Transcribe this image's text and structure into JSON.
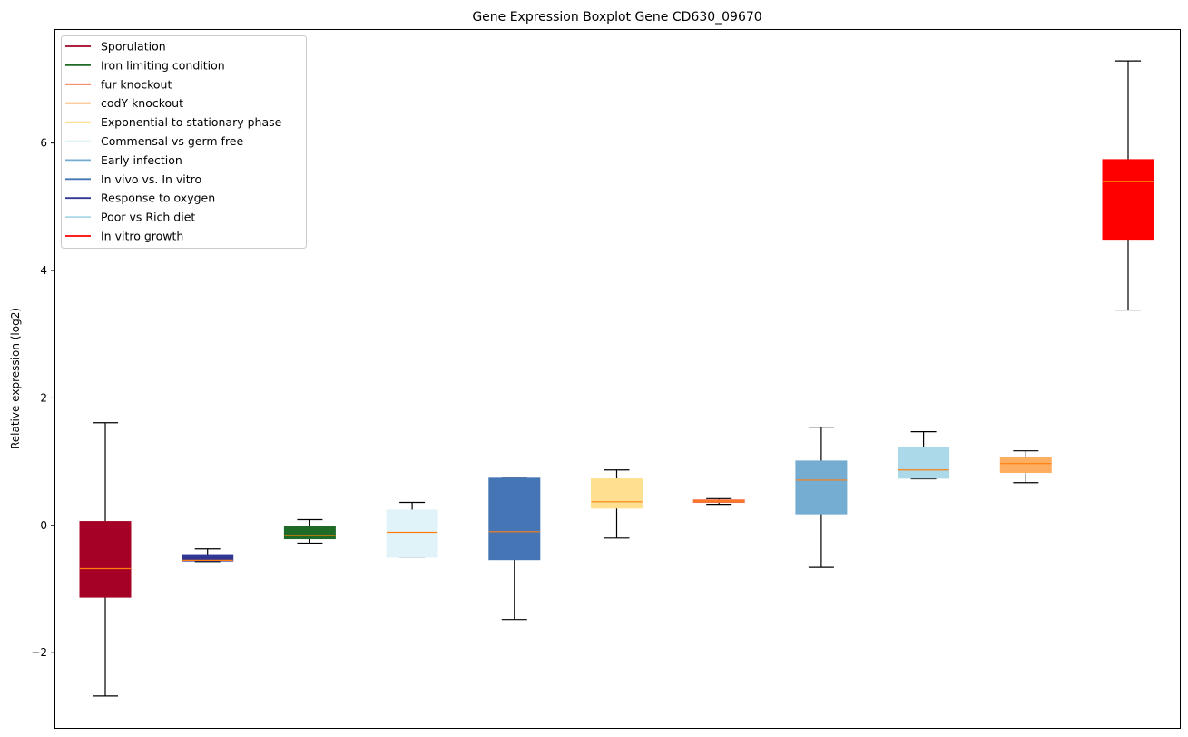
{
  "chart_data": {
    "type": "boxplot",
    "title": "Gene Expression Boxplot Gene CD630_09670",
    "xlabel": "",
    "ylabel": "Relative expression (log2)",
    "ylim": [
      -3.18,
      7.79
    ],
    "yticks": [
      -2,
      0,
      2,
      4,
      6
    ],
    "ytick_labels": [
      "−2",
      "0",
      "2",
      "4",
      "6"
    ],
    "grid": false,
    "legend_position": "top-left",
    "median_color": "#ff7f0e",
    "legend": [
      {
        "label": "Sporulation",
        "color": "#a50026"
      },
      {
        "label": "Iron limiting condition",
        "color": "#1d6b27"
      },
      {
        "label": "fur knockout",
        "color": "#f46d43"
      },
      {
        "label": "codY knockout",
        "color": "#fdae61"
      },
      {
        "label": "Exponential to stationary phase",
        "color": "#fee090"
      },
      {
        "label": "Commensal vs germ free",
        "color": "#e0f3f8"
      },
      {
        "label": "Early infection",
        "color": "#74add1"
      },
      {
        "label": "In vivo vs. In vitro",
        "color": "#4575b4"
      },
      {
        "label": "Response to oxygen",
        "color": "#313695"
      },
      {
        "label": "Poor vs Rich diet",
        "color": "#abd9e9"
      },
      {
        "label": "In vitro growth",
        "color": "#ff0000"
      }
    ],
    "boxes": [
      {
        "name": "Sporulation",
        "color": "#a50026",
        "whislo": -2.68,
        "q1": -1.13,
        "med": -0.68,
        "q3": 0.06,
        "whishi": 1.61
      },
      {
        "name": "Response to oxygen",
        "color": "#313695",
        "whislo": -0.57,
        "q1": -0.56,
        "med": -0.55,
        "q3": -0.46,
        "whishi": -0.37
      },
      {
        "name": "Iron limiting condition",
        "color": "#1d6b27",
        "whislo": -0.28,
        "q1": -0.21,
        "med": -0.16,
        "q3": -0.01,
        "whishi": 0.09
      },
      {
        "name": "Commensal vs germ free",
        "color": "#e0f3f8",
        "whislo": -0.5,
        "q1": -0.5,
        "med": -0.11,
        "q3": 0.24,
        "whishi": 0.36
      },
      {
        "name": "In vivo vs. In vitro",
        "color": "#4575b4",
        "whislo": -1.48,
        "q1": -0.54,
        "med": -0.1,
        "q3": 0.74,
        "whishi": 0.74
      },
      {
        "name": "Exponential to stationary phase",
        "color": "#fee090",
        "whislo": -0.2,
        "q1": 0.27,
        "med": 0.37,
        "q3": 0.73,
        "whishi": 0.87
      },
      {
        "name": "fur knockout",
        "color": "#f46d43",
        "whislo": 0.33,
        "q1": 0.36,
        "med": 0.38,
        "q3": 0.4,
        "whishi": 0.42
      },
      {
        "name": "Early infection",
        "color": "#74add1",
        "whislo": -0.66,
        "q1": 0.18,
        "med": 0.71,
        "q3": 1.01,
        "whishi": 1.54
      },
      {
        "name": "Poor vs Rich diet",
        "color": "#abd9e9",
        "whislo": 0.73,
        "q1": 0.74,
        "med": 0.87,
        "q3": 1.22,
        "whishi": 1.47
      },
      {
        "name": "codY knockout",
        "color": "#fdae61",
        "whislo": 0.67,
        "q1": 0.83,
        "med": 0.97,
        "q3": 1.07,
        "whishi": 1.17
      },
      {
        "name": "In vitro growth",
        "color": "#ff0000",
        "whislo": 3.38,
        "q1": 4.49,
        "med": 5.4,
        "q3": 5.74,
        "whishi": 7.29
      }
    ]
  }
}
